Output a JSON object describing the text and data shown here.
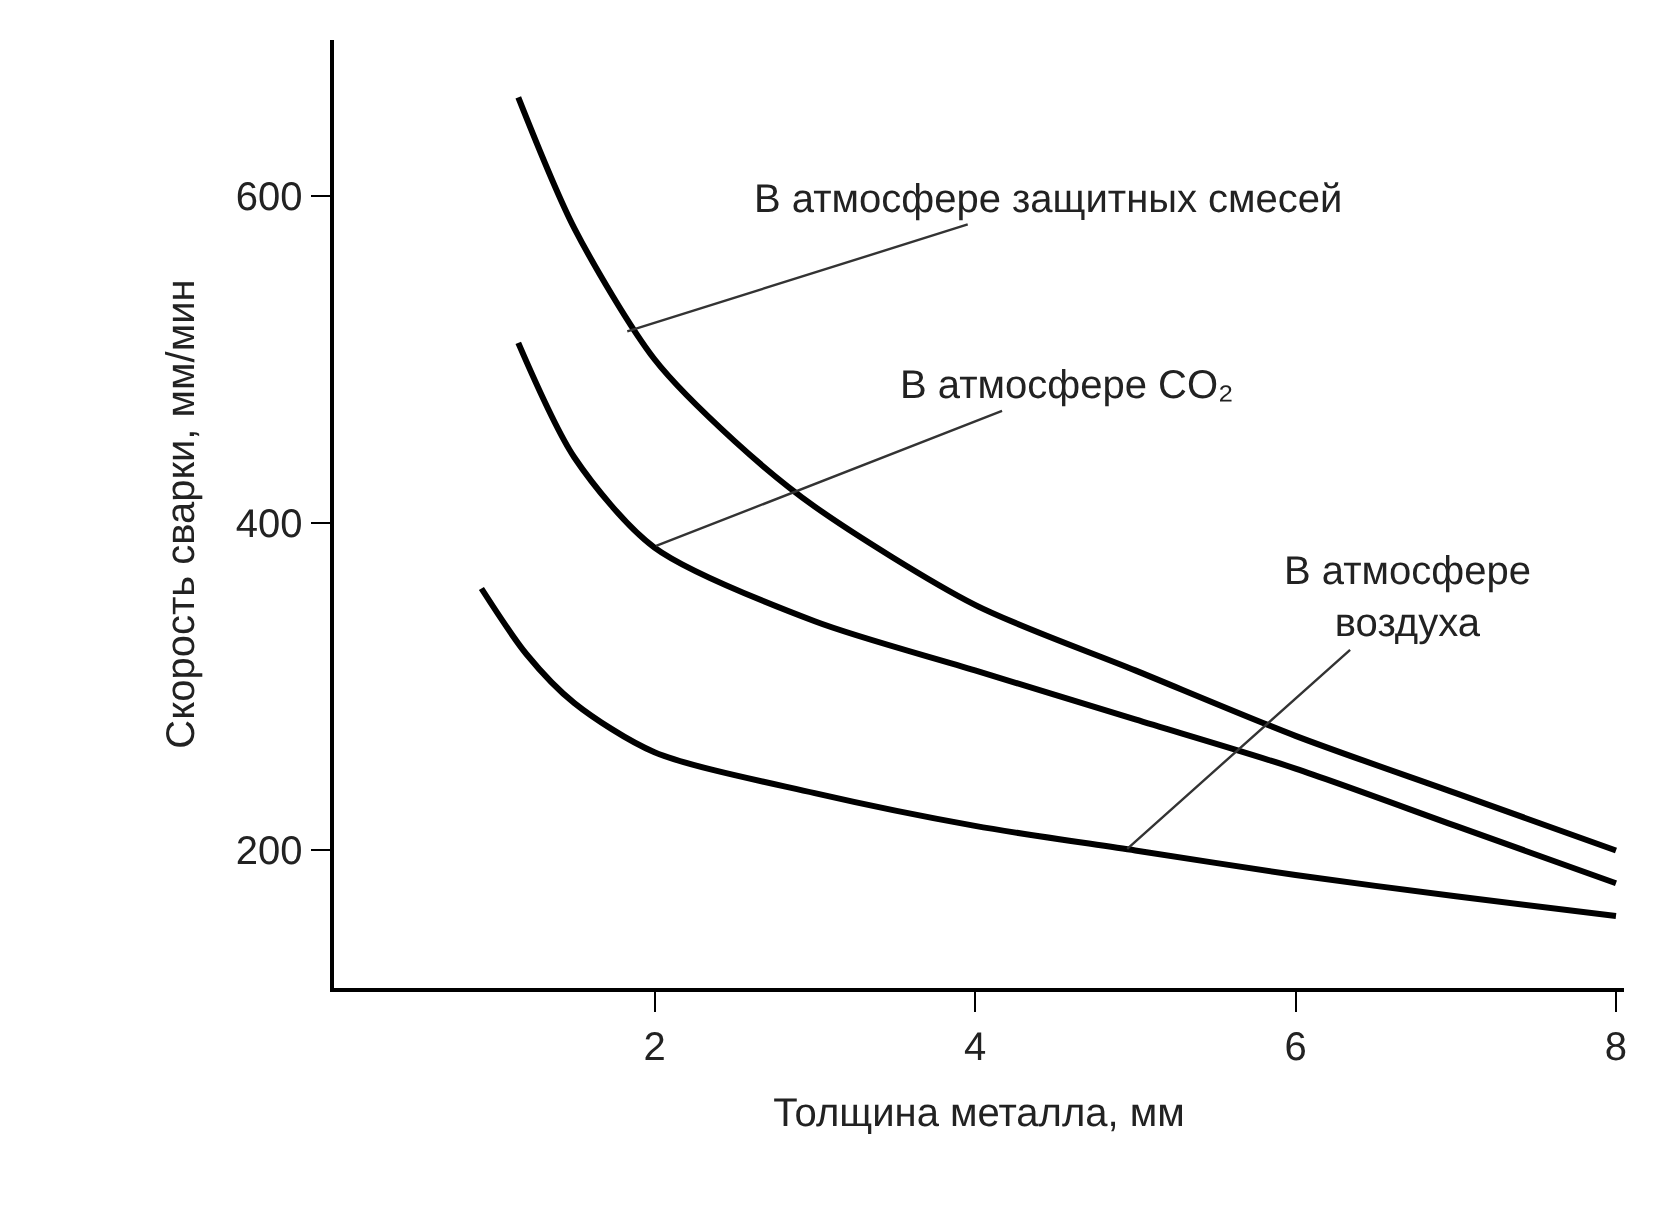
{
  "chart_data": {
    "type": "line",
    "xlabel": "Толщина металла, мм",
    "ylabel": "Скорость сварки, мм/мин",
    "xlim": [
      0,
      8.05
    ],
    "xticks": [
      2,
      4,
      6,
      8
    ],
    "ylim": [
      116,
      695
    ],
    "yticks": [
      200,
      400,
      600
    ],
    "marker": "none",
    "line_style": "solid",
    "series": [
      {
        "color": "#000000",
        "x": [
          1.15,
          1.5,
          2,
          2.5,
          3,
          4,
          5,
          6,
          7,
          8
        ],
        "values": [
          660,
          580,
          500,
          450,
          410,
          350,
          310,
          270,
          235,
          200
        ]
      },
      {
        "color": "#000000",
        "x": [
          1.15,
          1.5,
          2,
          3,
          4,
          5,
          6,
          7,
          8
        ],
        "values": [
          510,
          440,
          385,
          340,
          310,
          280,
          250,
          215,
          180
        ]
      },
      {
        "color": "#000000",
        "x": [
          0.92,
          1.2,
          1.5,
          2,
          3,
          4,
          5,
          6,
          7,
          8
        ],
        "values": [
          360,
          320,
          290,
          260,
          235,
          215,
          200,
          185,
          172,
          160
        ]
      }
    ],
    "annotations": [
      {
        "text": "В атмосфере защитных смесей",
        "x": 1.83,
        "y": 517
      },
      {
        "text": "В атмосфере CO₂",
        "x": 2.01,
        "y": 386
      },
      {
        "text": "В атмосфере\nвоздуха",
        "x": 4.95,
        "y": 201
      }
    ]
  }
}
